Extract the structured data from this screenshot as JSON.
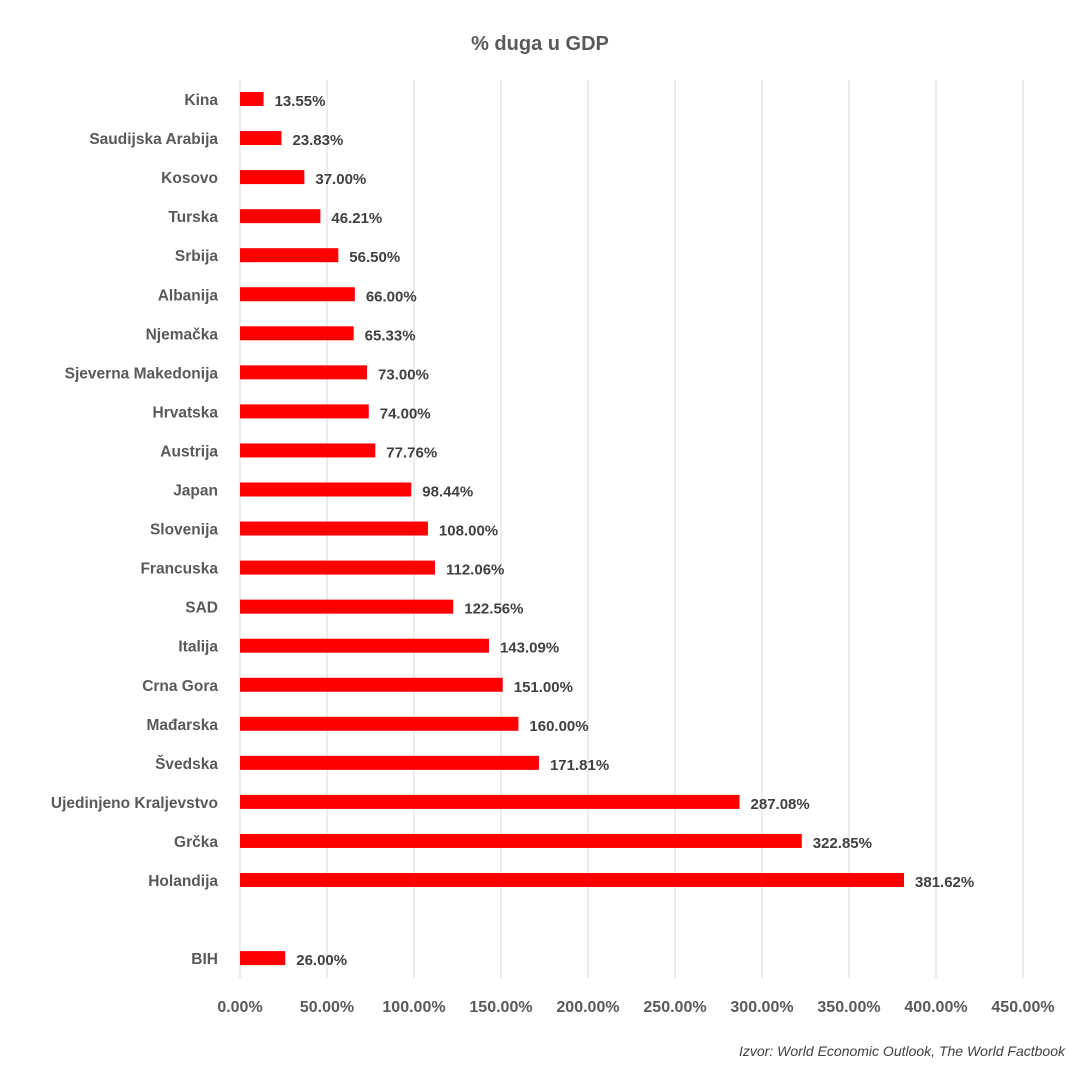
{
  "chart_data": {
    "type": "bar",
    "orientation": "horizontal",
    "title": "% duga u GDP",
    "categories": [
      "Kina",
      "Saudijska Arabija",
      "Kosovo",
      "Turska",
      "Srbija",
      "Albanija",
      "Njemačka",
      "Sjeverna Makedonija",
      "Hrvatska",
      "Austrija",
      "Japan",
      "Slovenija",
      "Francuska",
      "SAD",
      "Italija",
      "Crna Gora",
      "Mađarska",
      "Švedska",
      "Ujedinjeno Kraljevstvo",
      "Grčka",
      "Holandija",
      "",
      "BIH"
    ],
    "values": [
      13.55,
      23.83,
      37.0,
      46.21,
      56.5,
      66.0,
      65.33,
      73.0,
      74.0,
      77.76,
      98.44,
      108.0,
      112.06,
      122.56,
      143.09,
      151.0,
      160.0,
      171.81,
      287.08,
      322.85,
      381.62,
      null,
      26.0
    ],
    "value_labels": [
      "13.55%",
      "23.83%",
      "37.00%",
      "46.21%",
      "56.50%",
      "66.00%",
      "65.33%",
      "73.00%",
      "74.00%",
      "77.76%",
      "98.44%",
      "108.00%",
      "112.06%",
      "122.56%",
      "143.09%",
      "151.00%",
      "160.00%",
      "171.81%",
      "287.08%",
      "322.85%",
      "381.62%",
      "",
      "26.00%"
    ],
    "xlim": [
      0,
      450
    ],
    "xticks": [
      0,
      50,
      100,
      150,
      200,
      250,
      300,
      350,
      400,
      450
    ],
    "xtick_labels": [
      "0.00%",
      "50.00%",
      "100.00%",
      "150.00%",
      "200.00%",
      "250.00%",
      "300.00%",
      "350.00%",
      "400.00%",
      "450.00%"
    ],
    "xlabel": "",
    "ylabel": "",
    "grid": "vertical",
    "legend": "none",
    "bar_color": "#ff0000",
    "source": "Izvor: World Economic Outlook, The World Factbook"
  }
}
